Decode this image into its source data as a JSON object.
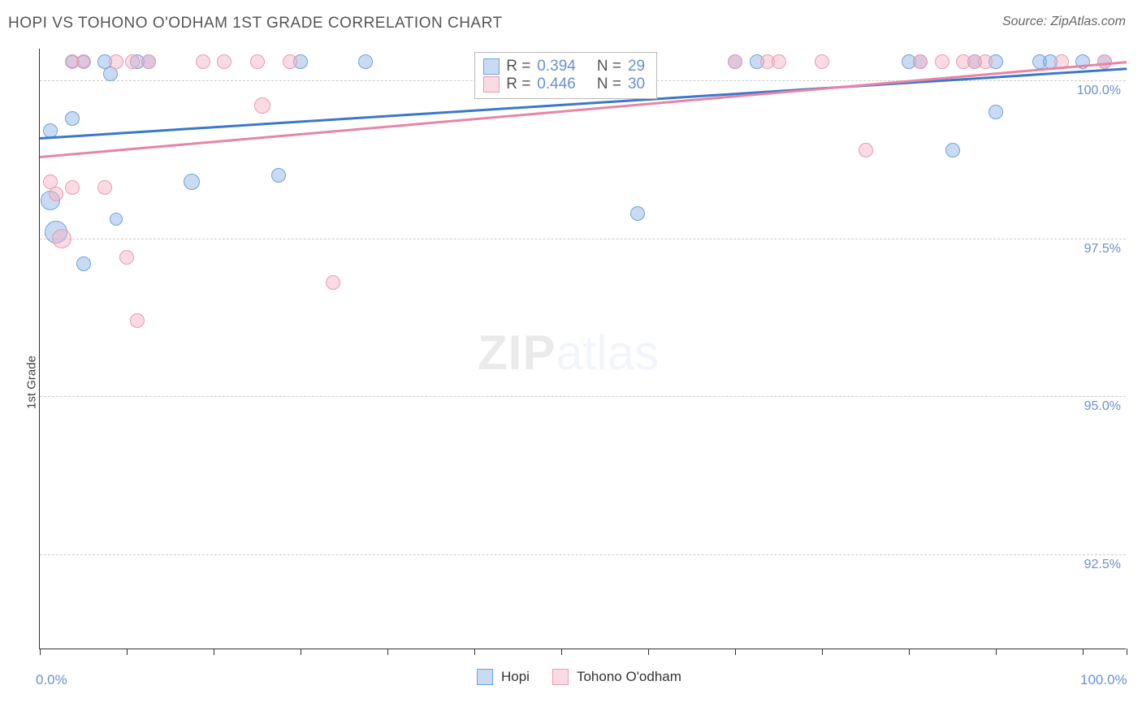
{
  "title": "HOPI VS TOHONO O'ODHAM 1ST GRADE CORRELATION CHART",
  "source": "Source: ZipAtlas.com",
  "yaxis_label": "1st Grade",
  "watermark": {
    "part1": "ZIP",
    "part2": "atlas"
  },
  "chart": {
    "type": "scatter",
    "xlim": [
      0,
      100
    ],
    "ylim": [
      91.0,
      100.5
    ],
    "y_gridlines": [
      92.5,
      95.0,
      97.5,
      100.0
    ],
    "y_tick_labels": [
      "92.5%",
      "95.0%",
      "97.5%",
      "100.0%"
    ],
    "x_ticks": [
      0,
      8,
      16,
      24,
      32,
      40,
      48,
      56,
      64,
      72,
      80,
      88,
      96,
      100
    ],
    "x_tick_labels": {
      "0": "0.0%",
      "100": "100.0%"
    },
    "grid_color": "#cccccc",
    "axis_color": "#333333",
    "background_color": "#ffffff",
    "label_color": "#6b8fd4",
    "text_color": "#555555",
    "title_fontsize": 19,
    "label_fontsize": 15,
    "tick_fontsize": 16,
    "marker_radius": 9,
    "marker_stroke": 1.5,
    "series": [
      {
        "name": "Hopi",
        "color_fill": "rgba(135,176,226,0.45)",
        "color_stroke": "#6ea2dc",
        "r": "0.394",
        "n": "29",
        "trend": {
          "x1": 0,
          "y1": 99.1,
          "x2": 100,
          "y2": 100.2,
          "color": "#3b78c9",
          "width": 2.5
        },
        "points": [
          {
            "x": 1,
            "y": 99.2,
            "r": 9
          },
          {
            "x": 1,
            "y": 98.1,
            "r": 12
          },
          {
            "x": 1.5,
            "y": 97.6,
            "r": 14
          },
          {
            "x": 3,
            "y": 99.4,
            "r": 9
          },
          {
            "x": 3,
            "y": 100.3,
            "r": 8
          },
          {
            "x": 4,
            "y": 100.3,
            "r": 8
          },
          {
            "x": 4,
            "y": 97.1,
            "r": 9
          },
          {
            "x": 6,
            "y": 100.3,
            "r": 9
          },
          {
            "x": 7,
            "y": 97.8,
            "r": 8
          },
          {
            "x": 6.5,
            "y": 100.1,
            "r": 9
          },
          {
            "x": 9,
            "y": 100.3,
            "r": 9
          },
          {
            "x": 10,
            "y": 100.3,
            "r": 9
          },
          {
            "x": 14,
            "y": 98.4,
            "r": 10
          },
          {
            "x": 22,
            "y": 98.5,
            "r": 9
          },
          {
            "x": 24,
            "y": 100.3,
            "r": 9
          },
          {
            "x": 30,
            "y": 100.3,
            "r": 9
          },
          {
            "x": 55,
            "y": 97.9,
            "r": 9
          },
          {
            "x": 66,
            "y": 100.3,
            "r": 9
          },
          {
            "x": 64,
            "y": 100.3,
            "r": 9
          },
          {
            "x": 80,
            "y": 100.3,
            "r": 9
          },
          {
            "x": 81,
            "y": 100.3,
            "r": 9
          },
          {
            "x": 84,
            "y": 98.9,
            "r": 9
          },
          {
            "x": 86,
            "y": 100.3,
            "r": 9
          },
          {
            "x": 88,
            "y": 100.3,
            "r": 9
          },
          {
            "x": 88,
            "y": 99.5,
            "r": 9
          },
          {
            "x": 92,
            "y": 100.3,
            "r": 9
          },
          {
            "x": 93,
            "y": 100.3,
            "r": 9
          },
          {
            "x": 96,
            "y": 100.3,
            "r": 9
          },
          {
            "x": 98,
            "y": 100.3,
            "r": 9
          }
        ]
      },
      {
        "name": "Tohono O'odham",
        "color_fill": "rgba(244,175,195,0.45)",
        "color_stroke": "#eb9ab3",
        "r": "0.446",
        "n": "30",
        "trend": {
          "x1": 0,
          "y1": 98.8,
          "x2": 100,
          "y2": 100.3,
          "color": "#e785a4",
          "width": 2.5
        },
        "points": [
          {
            "x": 1,
            "y": 98.4,
            "r": 9
          },
          {
            "x": 1.5,
            "y": 98.2,
            "r": 9
          },
          {
            "x": 2,
            "y": 97.5,
            "r": 12
          },
          {
            "x": 3,
            "y": 98.3,
            "r": 9
          },
          {
            "x": 3,
            "y": 100.3,
            "r": 9
          },
          {
            "x": 4,
            "y": 100.3,
            "r": 9
          },
          {
            "x": 6,
            "y": 98.3,
            "r": 9
          },
          {
            "x": 7,
            "y": 100.3,
            "r": 9
          },
          {
            "x": 8,
            "y": 97.2,
            "r": 9
          },
          {
            "x": 8.5,
            "y": 100.3,
            "r": 9
          },
          {
            "x": 9,
            "y": 96.2,
            "r": 9
          },
          {
            "x": 10,
            "y": 100.3,
            "r": 9
          },
          {
            "x": 15,
            "y": 100.3,
            "r": 9
          },
          {
            "x": 17,
            "y": 100.3,
            "r": 9
          },
          {
            "x": 20,
            "y": 100.3,
            "r": 9
          },
          {
            "x": 20.5,
            "y": 99.6,
            "r": 10
          },
          {
            "x": 27,
            "y": 96.8,
            "r": 9
          },
          {
            "x": 23,
            "y": 100.3,
            "r": 9
          },
          {
            "x": 64,
            "y": 100.3,
            "r": 9
          },
          {
            "x": 67,
            "y": 100.3,
            "r": 9
          },
          {
            "x": 68,
            "y": 100.3,
            "r": 9
          },
          {
            "x": 72,
            "y": 100.3,
            "r": 9
          },
          {
            "x": 76,
            "y": 98.9,
            "r": 9
          },
          {
            "x": 81,
            "y": 100.3,
            "r": 9
          },
          {
            "x": 83,
            "y": 100.3,
            "r": 9
          },
          {
            "x": 85,
            "y": 100.3,
            "r": 9
          },
          {
            "x": 86,
            "y": 100.3,
            "r": 9
          },
          {
            "x": 87,
            "y": 100.3,
            "r": 9
          },
          {
            "x": 94,
            "y": 100.3,
            "r": 9
          },
          {
            "x": 98,
            "y": 100.3,
            "r": 9
          }
        ]
      }
    ],
    "legend_top": {
      "r_prefix": "R =",
      "n_prefix": "N ="
    },
    "legend_bottom": [
      {
        "label": "Hopi",
        "fill": "rgba(135,176,226,0.45)",
        "stroke": "#6ea2dc"
      },
      {
        "label": "Tohono O'odham",
        "fill": "rgba(244,175,195,0.45)",
        "stroke": "#eb9ab3"
      }
    ]
  }
}
